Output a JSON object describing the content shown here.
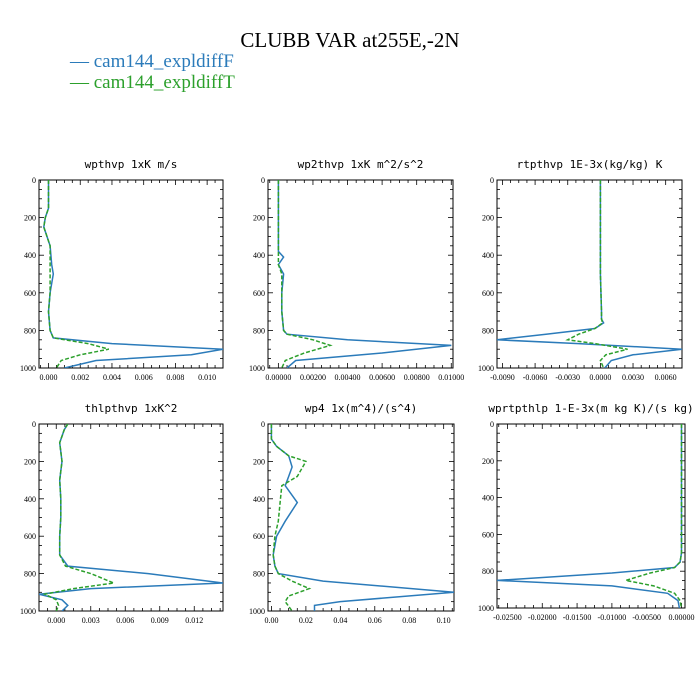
{
  "title": "CLUBB VAR at255E,-2N",
  "legend": [
    {
      "label": "cam144_expldiffF",
      "color": "#2b7bba"
    },
    {
      "label": "cam144_expldiffT",
      "color": "#2ca02c"
    }
  ],
  "chart_data": [
    {
      "type": "line",
      "title": "wpthvp   1xK m/s",
      "xlim": [
        -0.0006,
        0.011
      ],
      "ylim": [
        1000,
        0
      ],
      "xticks": [
        0.0,
        0.002,
        0.004,
        0.006,
        0.008,
        0.01
      ],
      "xticklabels": [
        "0.000",
        "0.002",
        "0.004",
        "0.006",
        "0.008",
        "0.010"
      ],
      "yticks": [
        0,
        200,
        400,
        600,
        800,
        1000
      ],
      "yticklabels": [
        "0",
        "200",
        "400",
        "600",
        "800",
        "1000"
      ],
      "series": [
        {
          "name": "cam144_expldiffF",
          "style": "solid",
          "x": [
            0.0,
            0.0,
            -0.0002,
            -0.0003,
            0.0001,
            0.0002,
            0.0003,
            0.0001,
            0.0,
            0.0001,
            0.0003,
            0.004,
            0.011,
            0.009,
            0.003,
            0.001
          ],
          "y": [
            0,
            150,
            200,
            250,
            350,
            450,
            500,
            600,
            700,
            800,
            840,
            870,
            900,
            930,
            960,
            1000
          ]
        },
        {
          "name": "cam144_expldiffT",
          "style": "dashed",
          "x": [
            0.0,
            0.0,
            -0.0002,
            -0.0003,
            0.0001,
            0.0001,
            0.0001,
            0.0001,
            0.0,
            0.0001,
            0.0003,
            0.0025,
            0.0038,
            0.002,
            0.0008,
            0.0005
          ],
          "y": [
            0,
            150,
            200,
            250,
            350,
            450,
            500,
            600,
            700,
            800,
            840,
            870,
            900,
            930,
            960,
            1000
          ]
        }
      ]
    },
    {
      "type": "line",
      "title": "wp2thvp   1xK m^2/s^2",
      "xlim": [
        -0.0006,
        0.0101
      ],
      "ylim": [
        1000,
        0
      ],
      "xticks": [
        0.0,
        0.002,
        0.004,
        0.006,
        0.008,
        0.01
      ],
      "xticklabels": [
        "0.00000",
        "0.00200",
        "0.00400",
        "0.00600",
        "0.00800",
        "0.01000"
      ],
      "yticks": [
        0,
        200,
        400,
        600,
        800,
        1000
      ],
      "yticklabels": [
        "0",
        "200",
        "400",
        "600",
        "800",
        "1000"
      ],
      "series": [
        {
          "name": "cam144_expldiffF",
          "style": "solid",
          "x": [
            0.0,
            0.0,
            0.0,
            0.0003,
            0.0,
            0.0003,
            0.0002,
            0.0002,
            0.0003,
            0.0005,
            0.004,
            0.01,
            0.006,
            0.001,
            0.0005
          ],
          "y": [
            0,
            200,
            380,
            410,
            450,
            500,
            600,
            700,
            800,
            820,
            850,
            880,
            920,
            960,
            1000
          ]
        },
        {
          "name": "cam144_expldiffT",
          "style": "dashed",
          "x": [
            0.0,
            0.0,
            0.0,
            0.0,
            0.0,
            0.0002,
            0.0002,
            0.0002,
            0.0003,
            0.0005,
            0.002,
            0.003,
            0.0015,
            0.0004,
            0.0002
          ],
          "y": [
            0,
            200,
            380,
            410,
            450,
            500,
            600,
            700,
            800,
            820,
            850,
            880,
            920,
            960,
            1000
          ]
        }
      ]
    },
    {
      "type": "line",
      "title": "rtpthvp   1E-3x(kg/kg) K",
      "xlim": [
        -0.0095,
        0.0075
      ],
      "ylim": [
        1000,
        0
      ],
      "xticks": [
        -0.009,
        -0.006,
        -0.003,
        0.0,
        0.003,
        0.006
      ],
      "xticklabels": [
        "-0.0090",
        "-0.0060",
        "-0.0030",
        "0.0000",
        "0.0030",
        "0.0060"
      ],
      "yticks": [
        0,
        200,
        400,
        600,
        800,
        1000
      ],
      "yticklabels": [
        "0",
        "200",
        "400",
        "600",
        "800",
        "1000"
      ],
      "series": [
        {
          "name": "cam144_expldiffF",
          "style": "solid",
          "x": [
            0.0,
            0.0,
            0.0,
            0.0001,
            0.0001,
            0.0003,
            -0.0005,
            -0.005,
            -0.0095,
            -0.002,
            0.0075,
            0.003,
            0.001,
            0.0004
          ],
          "y": [
            0,
            200,
            500,
            700,
            740,
            760,
            790,
            820,
            850,
            870,
            900,
            930,
            960,
            1000
          ]
        },
        {
          "name": "cam144_expldiffT",
          "style": "dashed",
          "x": [
            0.0,
            0.0,
            0.0,
            0.0001,
            0.0001,
            0.0002,
            -0.0005,
            -0.002,
            -0.003,
            -0.0005,
            0.0025,
            0.0005,
            0.0,
            0.0003
          ],
          "y": [
            0,
            200,
            500,
            700,
            740,
            760,
            790,
            820,
            850,
            870,
            900,
            930,
            960,
            1000
          ]
        }
      ]
    },
    {
      "type": "line",
      "title": "thlpthvp   1xK^2",
      "xlim": [
        -0.0015,
        0.0145
      ],
      "ylim": [
        1000,
        0
      ],
      "xticks": [
        0.0,
        0.003,
        0.006,
        0.009,
        0.012
      ],
      "xticklabels": [
        "0.000",
        "0.003",
        "0.006",
        "0.009",
        "0.012"
      ],
      "yticks": [
        0,
        200,
        400,
        600,
        800,
        1000
      ],
      "yticklabels": [
        "0",
        "200",
        "400",
        "600",
        "800",
        "1000"
      ],
      "series": [
        {
          "name": "cam144_expldiffF",
          "style": "solid",
          "x": [
            0.001,
            0.0007,
            0.0003,
            0.0005,
            0.0003,
            0.0004,
            0.0004,
            0.0003,
            0.0003,
            0.001,
            0.008,
            0.0145,
            0.003,
            -0.0015,
            0.0005,
            0.001,
            0.0005
          ],
          "y": [
            0,
            30,
            100,
            200,
            300,
            400,
            500,
            600,
            700,
            760,
            800,
            850,
            880,
            910,
            940,
            970,
            1000
          ]
        },
        {
          "name": "cam144_expldiffT",
          "style": "dashed",
          "x": [
            0.001,
            0.0007,
            0.0003,
            0.0005,
            0.0003,
            0.0004,
            0.0004,
            0.0003,
            0.0003,
            0.0008,
            0.003,
            0.005,
            0.0015,
            -0.001,
            0.0,
            0.0002,
            0.0
          ],
          "y": [
            0,
            30,
            100,
            200,
            300,
            400,
            500,
            600,
            700,
            760,
            800,
            850,
            880,
            910,
            940,
            970,
            1000
          ]
        }
      ]
    },
    {
      "type": "line",
      "title": "wp4   1x(m^4)/(s^4)",
      "xlim": [
        -0.002,
        0.106
      ],
      "ylim": [
        1000,
        0
      ],
      "xticks": [
        0.0,
        0.02,
        0.04,
        0.06,
        0.08,
        0.1
      ],
      "xticklabels": [
        "0.00",
        "0.02",
        "0.04",
        "0.06",
        "0.08",
        "0.10"
      ],
      "yticks": [
        0,
        200,
        400,
        600,
        800,
        1000
      ],
      "yticklabels": [
        "0",
        "200",
        "400",
        "600",
        "800",
        "1000"
      ],
      "series": [
        {
          "name": "cam144_expldiffF",
          "style": "solid",
          "x": [
            0.0,
            0.0,
            0.003,
            0.01,
            0.012,
            0.01,
            0.008,
            0.015,
            0.008,
            0.003,
            0.001,
            0.002,
            0.004,
            0.03,
            0.106,
            0.04,
            0.025,
            0.025
          ],
          "y": [
            0,
            80,
            120,
            170,
            230,
            280,
            330,
            420,
            520,
            600,
            700,
            760,
            800,
            840,
            900,
            950,
            970,
            1000
          ]
        },
        {
          "name": "cam144_expldiffT",
          "style": "dashed",
          "x": [
            0.0,
            0.0,
            0.003,
            0.01,
            0.02,
            0.015,
            0.006,
            0.005,
            0.004,
            0.002,
            0.001,
            0.002,
            0.004,
            0.012,
            0.022,
            0.01,
            0.008,
            0.012
          ],
          "y": [
            0,
            80,
            120,
            170,
            200,
            280,
            330,
            420,
            520,
            600,
            700,
            760,
            800,
            840,
            880,
            920,
            950,
            1000
          ]
        }
      ]
    },
    {
      "type": "line",
      "title": "wprtpthlp   1-E-3x(m kg K)/(s kg)",
      "xlim": [
        -0.0265,
        0.0005
      ],
      "ylim": [
        1000,
        0
      ],
      "xticks": [
        -0.025,
        -0.02,
        -0.015,
        -0.01,
        -0.005,
        0.0
      ],
      "xticklabels": [
        "-0.02500",
        "-0.02000",
        "-0.01500",
        "-0.01000",
        "-0.00500",
        "0.00000"
      ],
      "yticks": [
        0,
        200,
        400,
        600,
        800,
        1000
      ],
      "yticklabels": [
        "0",
        "200",
        "400",
        "600",
        "800",
        "1000"
      ],
      "series": [
        {
          "name": "cam144_expldiffF",
          "style": "solid",
          "x": [
            0.0,
            0.0,
            0.0,
            0.0,
            -0.0002,
            -0.001,
            -0.01,
            -0.0265,
            -0.01,
            -0.002,
            -0.0005,
            -0.0003
          ],
          "y": [
            0,
            300,
            600,
            700,
            750,
            780,
            810,
            850,
            880,
            920,
            960,
            1000
          ]
        },
        {
          "name": "cam144_expldiffT",
          "style": "dashed",
          "x": [
            0.0,
            0.0,
            0.0,
            0.0,
            -0.0002,
            -0.001,
            -0.0045,
            -0.008,
            -0.004,
            -0.001,
            -0.0002,
            0.0
          ],
          "y": [
            0,
            300,
            600,
            700,
            750,
            780,
            810,
            850,
            880,
            920,
            960,
            1000
          ]
        }
      ]
    }
  ]
}
